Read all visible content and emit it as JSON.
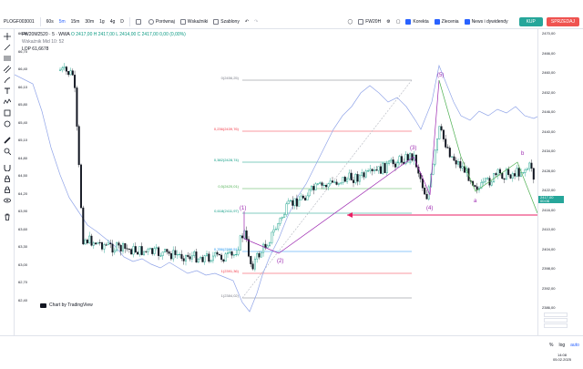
{
  "header": {
    "symbol": "PLOGF003001",
    "intervals": [
      "60s",
      "5m",
      "15m",
      "30m",
      "1g",
      "4g",
      "D"
    ],
    "active_interval": "5m",
    "compare_label": "Porównaj",
    "indicators_label": "Wskaźniki",
    "templates_label": "Szablony",
    "instrument_label": "FW20H",
    "buttons": {
      "correct": "Korekta",
      "orders": "Zlecenia",
      "news": "News i dywidendy",
      "buy": "KUP",
      "sell": "SPRZEDAJ"
    }
  },
  "legend": {
    "title": "FW20M2520 · 5 · WWA",
    "ohlc": "O 2417,00  H 2417,00  L 2414,00  C 2417,00  0,00 (0,00%)",
    "sub1": "Wskaźnik Mid  10:  52",
    "sub2": "LOP  61,6678"
  },
  "right_axis": {
    "labels": [
      "2470,00",
      "2466,00",
      "2460,00",
      "2452,00",
      "2446,00",
      "2440,00",
      "2434,00",
      "2428,00",
      "2422,00",
      "2416,00",
      "2410,00",
      "2404,00",
      "2398,00",
      "2392,00",
      "2386,00"
    ],
    "price_tag": "2417,00",
    "price_tag_sub": "00:06"
  },
  "left_axis": {
    "labels": [
      "66,90",
      "66,70",
      "66,40",
      "66,10",
      "65,80",
      "65,40",
      "65,10",
      "64,80",
      "64,50",
      "64,20",
      "63,90",
      "63,60",
      "63,30",
      "63,00",
      "62,70",
      "62,40"
    ]
  },
  "fib_levels": [
    {
      "label": "0(2456,25)",
      "color": "#787b86"
    },
    {
      "label": "0,236(2439,76)",
      "color": "#f23645"
    },
    {
      "label": "0,382(2428,74)",
      "color": "#089981"
    },
    {
      "label": "0,5(2420,01)",
      "color": "#4caf50"
    },
    {
      "label": "0,618(2411,97)",
      "color": "#089981"
    },
    {
      "label": "0,786(2399,51)",
      "color": "#2196f3"
    },
    {
      "label": "1(2391,36)",
      "color": "#f23645"
    },
    {
      "label": "1(2384,02)",
      "color": "#787b86"
    }
  ],
  "waves": {
    "impulse": [
      "(1)",
      "(2)",
      "(3)",
      "(4)",
      "(5)"
    ],
    "correction": [
      "a",
      "b",
      "c"
    ]
  },
  "credit": "Chart by TradingView",
  "axis_options": [
    "%",
    "log",
    "auto"
  ],
  "clock": {
    "time": "14:08",
    "date": "05.02.2025"
  },
  "colors": {
    "up": "#089981",
    "down": "#f23645",
    "candle": "#131722",
    "overlay": "#90a4e8",
    "wave": "#9c27b0",
    "arrow": "#e91e63"
  }
}
